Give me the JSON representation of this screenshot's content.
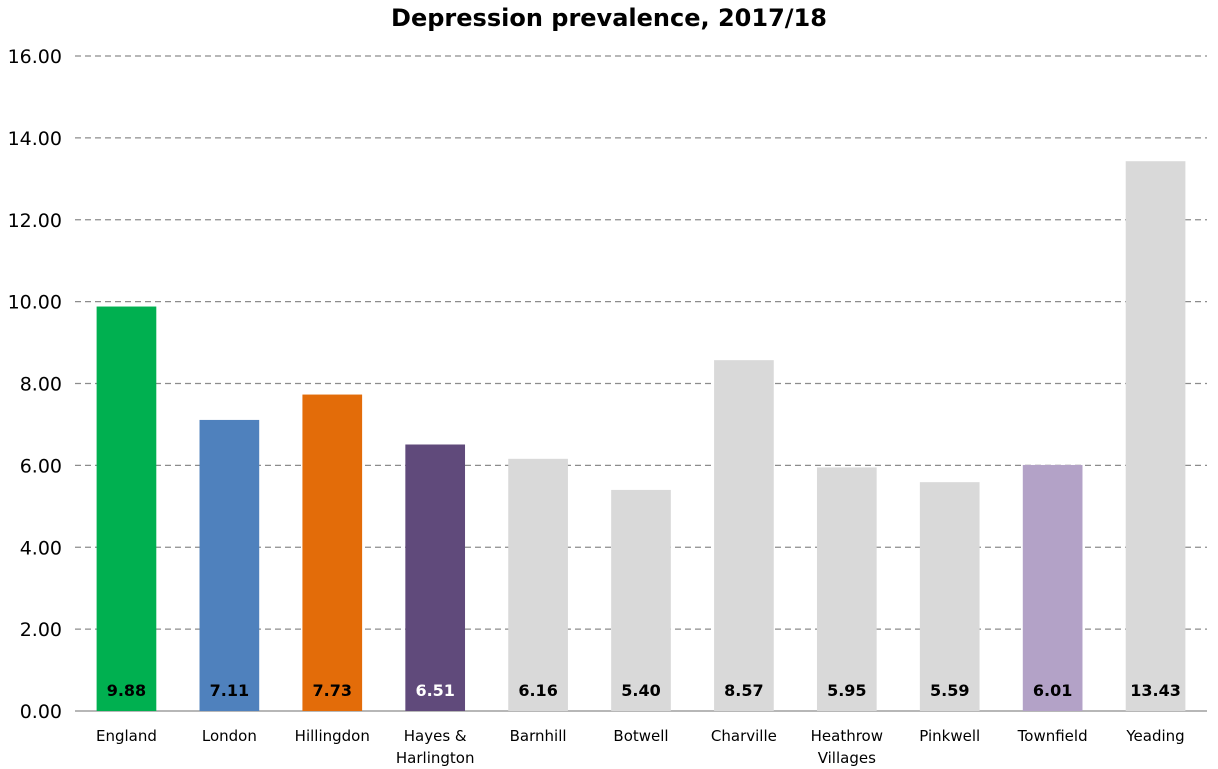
{
  "chart_data": {
    "type": "bar",
    "title": "Depression prevalence, 2017/18",
    "xlabel": "",
    "ylabel": "",
    "ylim": [
      0,
      16
    ],
    "yticks": [
      "0.00",
      "2.00",
      "4.00",
      "6.00",
      "8.00",
      "10.00",
      "12.00",
      "14.00",
      "16.00"
    ],
    "grid": true,
    "legend": "none",
    "categories": [
      [
        "England"
      ],
      [
        "London"
      ],
      [
        "Hillingdon"
      ],
      [
        "Hayes &",
        "Harlington"
      ],
      [
        "Barnhill"
      ],
      [
        "Botwell"
      ],
      [
        "Charville"
      ],
      [
        "Heathrow",
        "Villages"
      ],
      [
        "Pinkwell"
      ],
      [
        "Townfield"
      ],
      [
        "Yeading"
      ]
    ],
    "values": [
      9.88,
      7.11,
      7.73,
      6.51,
      6.16,
      5.4,
      8.57,
      5.95,
      5.59,
      6.01,
      13.43
    ],
    "data_labels": [
      "9.88",
      "7.11",
      "7.73",
      "6.51",
      "6.16",
      "5.40",
      "8.57",
      "5.95",
      "5.59",
      "6.01",
      "13.43"
    ],
    "bar_colors": [
      "#00b050",
      "#4f81bd",
      "#e36c09",
      "#604a7b",
      "#d9d9d9",
      "#d9d9d9",
      "#d9d9d9",
      "#d9d9d9",
      "#d9d9d9",
      "#b3a2c7",
      "#d9d9d9"
    ],
    "label_colors": [
      "#000000",
      "#000000",
      "#000000",
      "#ffffff",
      "#000000",
      "#000000",
      "#000000",
      "#000000",
      "#000000",
      "#000000",
      "#000000"
    ]
  }
}
